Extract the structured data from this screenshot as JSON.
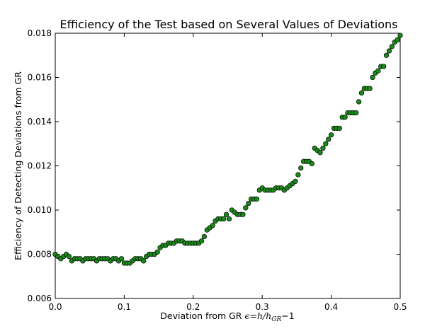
{
  "chart_data": {
    "type": "scatter",
    "title": "Efficiency of the Test based on Several Values of Deviations",
    "xlabel_text": "Deviation from GR",
    "xlabel_math": "ε=h/h_GR−1",
    "ylabel": "Efficiency of Detecting Deviations from GR",
    "xlim": [
      0.0,
      0.5
    ],
    "ylim": [
      0.006,
      0.018
    ],
    "xticks": [
      0.0,
      0.1,
      0.2,
      0.3,
      0.4,
      0.5
    ],
    "xtick_labels": [
      "0.0",
      "0.1",
      "0.2",
      "0.3",
      "0.4",
      "0.5"
    ],
    "yticks": [
      0.006,
      0.008,
      0.01,
      0.012,
      0.014,
      0.016,
      0.018
    ],
    "ytick_labels": [
      "0.006",
      "0.008",
      "0.010",
      "0.012",
      "0.014",
      "0.016",
      "0.018"
    ],
    "grid": false,
    "marker_color": "#1a8a1a",
    "marker_edge": "#000000",
    "series": [
      {
        "x": [
          0.0,
          0.004,
          0.008,
          0.012,
          0.016,
          0.02,
          0.024,
          0.028,
          0.032,
          0.036,
          0.04,
          0.044,
          0.048,
          0.052,
          0.056,
          0.06,
          0.064,
          0.068,
          0.072,
          0.076,
          0.08,
          0.084,
          0.088,
          0.092,
          0.096,
          0.1,
          0.104,
          0.108,
          0.112,
          0.116,
          0.12,
          0.124,
          0.128,
          0.132,
          0.136,
          0.14,
          0.144,
          0.148,
          0.152,
          0.156,
          0.16,
          0.164,
          0.168,
          0.172,
          0.176,
          0.18,
          0.184,
          0.188,
          0.192,
          0.196,
          0.2,
          0.204,
          0.208,
          0.212,
          0.216,
          0.22,
          0.224,
          0.228,
          0.232,
          0.236,
          0.24,
          0.244,
          0.248,
          0.252,
          0.256,
          0.26,
          0.264,
          0.268,
          0.272,
          0.276,
          0.28,
          0.284,
          0.288,
          0.292,
          0.296,
          0.3,
          0.304,
          0.308,
          0.312,
          0.316,
          0.32,
          0.324,
          0.328,
          0.332,
          0.336,
          0.34,
          0.344,
          0.348,
          0.352,
          0.356,
          0.36,
          0.364,
          0.368,
          0.372,
          0.376,
          0.38,
          0.384,
          0.388,
          0.392,
          0.396,
          0.4,
          0.404,
          0.408,
          0.412,
          0.416,
          0.42,
          0.424,
          0.428,
          0.432,
          0.436,
          0.44,
          0.444,
          0.448,
          0.452,
          0.456,
          0.46,
          0.464,
          0.468,
          0.472,
          0.476,
          0.48,
          0.484,
          0.488,
          0.492,
          0.496,
          0.5
        ],
        "y": [
          0.008,
          0.0079,
          0.0078,
          0.0079,
          0.008,
          0.0079,
          0.0077,
          0.0078,
          0.0078,
          0.0078,
          0.0077,
          0.0078,
          0.0078,
          0.0078,
          0.0078,
          0.0077,
          0.0078,
          0.0078,
          0.0078,
          0.0078,
          0.0077,
          0.0078,
          0.0078,
          0.0077,
          0.0078,
          0.0076,
          0.0076,
          0.0076,
          0.0077,
          0.0078,
          0.0078,
          0.0078,
          0.0077,
          0.0079,
          0.008,
          0.008,
          0.008,
          0.0081,
          0.0083,
          0.0084,
          0.0084,
          0.0085,
          0.0085,
          0.0085,
          0.0086,
          0.0086,
          0.0086,
          0.0085,
          0.0085,
          0.0085,
          0.0085,
          0.0085,
          0.0085,
          0.0086,
          0.0088,
          0.0091,
          0.0092,
          0.0093,
          0.0095,
          0.0096,
          0.0096,
          0.0096,
          0.0098,
          0.0096,
          0.01,
          0.0099,
          0.0098,
          0.0098,
          0.0098,
          0.0101,
          0.0103,
          0.0105,
          0.0105,
          0.0105,
          0.0109,
          0.011,
          0.0109,
          0.0109,
          0.0109,
          0.0109,
          0.011,
          0.011,
          0.011,
          0.0109,
          0.011,
          0.0111,
          0.0112,
          0.0113,
          0.0116,
          0.0119,
          0.0122,
          0.0122,
          0.0122,
          0.0121,
          0.0128,
          0.0127,
          0.0126,
          0.0128,
          0.013,
          0.0132,
          0.0134,
          0.0137,
          0.0137,
          0.0137,
          0.0142,
          0.0142,
          0.0144,
          0.0144,
          0.0144,
          0.0144,
          0.0149,
          0.0153,
          0.0155,
          0.0155,
          0.0155,
          0.016,
          0.0162,
          0.0163,
          0.0165,
          0.0165,
          0.017,
          0.0172,
          0.0174,
          0.0176,
          0.0177,
          0.0179
        ]
      }
    ]
  }
}
